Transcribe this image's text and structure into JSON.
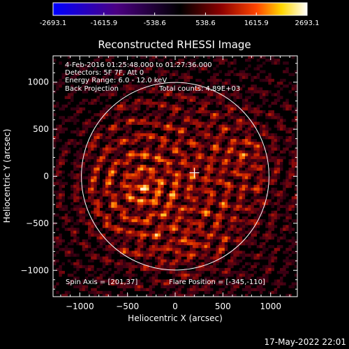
{
  "colorbar": {
    "ticks": [
      -2693.1,
      -1615.9,
      -538.6,
      538.6,
      1615.9,
      2693.1
    ],
    "tick_labels": [
      "-2693.1",
      "-1615.9",
      "-538.6",
      "538.6",
      "1615.9",
      "2693.1"
    ],
    "colormap": [
      "#0000ff",
      "#4b0082",
      "#000000",
      "#8b0000",
      "#ff4500",
      "#ffd700",
      "#ffffff"
    ]
  },
  "chart_data": {
    "type": "heatmap",
    "title": "Reconstructed RHESSI Image",
    "xlabel": "Heliocentric X (arcsec)",
    "ylabel": "Heliocentric Y (arcsec)",
    "xlim": [
      -1280,
      1280
    ],
    "ylim": [
      -1280,
      1280
    ],
    "xticks": [
      -1000,
      -500,
      0,
      500,
      1000
    ],
    "yticks": [
      -1000,
      -500,
      0,
      500,
      1000
    ],
    "xtick_labels": [
      "−1000",
      "−500",
      "0",
      "500",
      "1000"
    ],
    "ytick_labels": [
      "−1000",
      "−500",
      "0",
      "500",
      "1000"
    ],
    "solar_radius": 983,
    "spin_axis": [
      201,
      37
    ],
    "flare_position": [
      -345,
      -110
    ],
    "bright_sources": [
      {
        "x": -345,
        "y": -110,
        "strength": 1.0
      },
      {
        "x": 730,
        "y": 200,
        "strength": 0.55
      },
      {
        "x": 150,
        "y": -700,
        "strength": 0.4
      }
    ],
    "annotations": {
      "time_range": "4-Feb-2016 01:25:48.000 to 01:27:36.000",
      "detectors": "Detectors: 5F 7F, Att 0",
      "energy_range": "Energy Range: 6.0 - 12.0 keV",
      "method": "Back Projection",
      "total_counts": "Total counts: 4.89E+03",
      "spin_axis_label": "Spin Axis = [201,37]",
      "flare_position_label": "Flare Position = [-345,-110]"
    }
  },
  "footer": {
    "timestamp": "17-May-2022 22:01"
  }
}
